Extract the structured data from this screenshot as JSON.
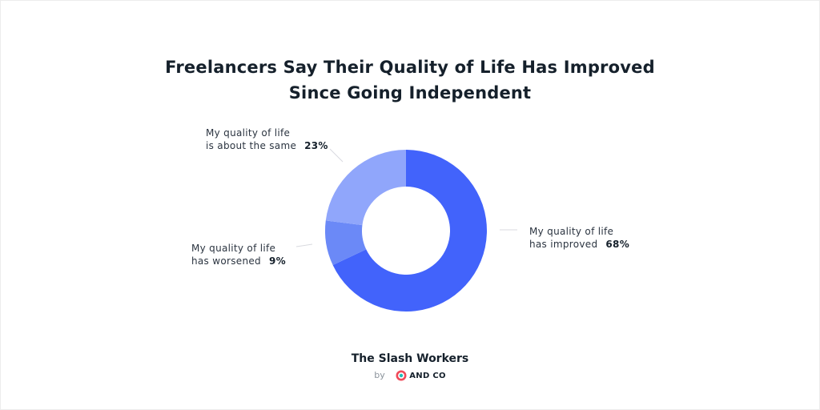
{
  "chart_data": {
    "type": "pie",
    "donut": true,
    "title": [
      "Freelancers Say Their Quality of Life Has Improved",
      "Since Going Independent"
    ],
    "slices": [
      {
        "label": [
          "My quality of life",
          "has improved"
        ],
        "value": 68,
        "display": "68%",
        "color": "#4263fb"
      },
      {
        "label": [
          "My quality of life",
          "has worsened"
        ],
        "value": 9,
        "display": "9%",
        "color": "#6b89f7"
      },
      {
        "label": [
          "My quality of life",
          "is about the same"
        ],
        "value": 23,
        "display": "23%",
        "color": "#90a6fb"
      }
    ],
    "leader_color": "#d8dadf"
  },
  "footer": {
    "title": "The Slash Workers",
    "by": "by",
    "brand": "AND CO",
    "brand_colors": {
      "ring": "#ef4b5a",
      "accent": "#1fbfb8"
    }
  }
}
